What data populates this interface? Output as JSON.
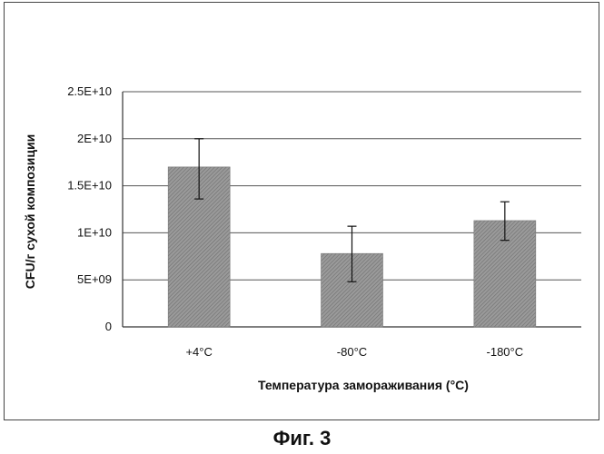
{
  "figure": {
    "caption": "Фиг. 3"
  },
  "colors": {
    "bar": "#8a8a8a",
    "grid": "#555555",
    "axis": "#333333"
  },
  "chart_data": {
    "type": "bar",
    "categories": [
      "+4°C",
      "-80°C",
      "-180°C"
    ],
    "series": [
      {
        "values": [
          17000000000,
          7800000000,
          11300000000
        ],
        "error_low": [
          13600000000,
          4800000000,
          9200000000
        ],
        "error_high": [
          20000000000,
          10700000000,
          13300000000
        ]
      }
    ],
    "xlabel": "Температура замораживания (°C)",
    "ylabel": "CFU/г сухой композиции",
    "ylim": [
      0,
      25000000000
    ],
    "yticks": [
      0,
      5000000000,
      10000000000,
      15000000000,
      20000000000,
      25000000000
    ],
    "ytick_labels": [
      "0",
      "5E+09",
      "1E+10",
      "1.5E+10",
      "2E+10",
      "2.5E+10"
    ],
    "grid": true,
    "legend": "none"
  }
}
